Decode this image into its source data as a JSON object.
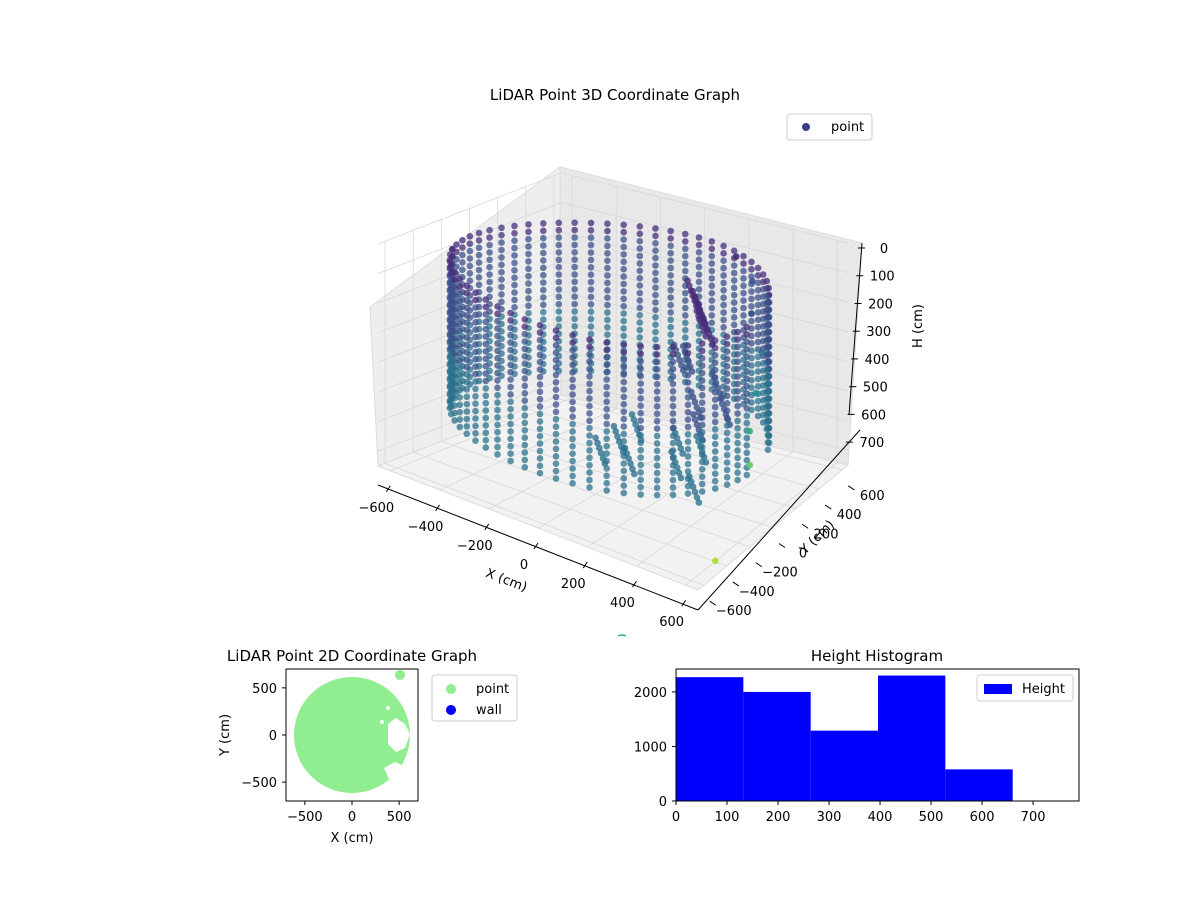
{
  "chart_data": [
    {
      "type": "scatter3d",
      "title": "LiDAR Point 3D Coordinate Graph",
      "xlabel": "X (cm)",
      "ylabel": "Y (cm)",
      "zlabel": "H (cm)",
      "xticks": [
        -600,
        -400,
        -200,
        0,
        200,
        400,
        600
      ],
      "yticks": [
        -600,
        -400,
        -200,
        0,
        200,
        400,
        600
      ],
      "zticks": [
        0,
        100,
        200,
        300,
        400,
        500,
        600,
        700
      ],
      "xlim": [
        -650,
        650
      ],
      "ylim": [
        -650,
        650
      ],
      "zlim": [
        0,
        750
      ],
      "z_inverted": true,
      "colormap": "viridis",
      "legend": [
        "point"
      ],
      "legend_position": "top-right",
      "grid": true,
      "wall_radius_cm": 600,
      "wall_height_range_cm": [
        100,
        600
      ],
      "series": [
        {
          "name": "point",
          "description_values": [
            {
              "x": 200,
              "y": 550,
              "h": 100
            },
            {
              "x": 300,
              "y": 500,
              "h": 150
            },
            {
              "x": 350,
              "y": 400,
              "h": 220
            },
            {
              "x": 450,
              "y": 300,
              "h": 300
            },
            {
              "x": 500,
              "y": 150,
              "h": 380
            },
            {
              "x": 550,
              "y": 0,
              "h": 450
            },
            {
              "x": 600,
              "y": -100,
              "h": 520
            },
            {
              "x": 650,
              "y": -500,
              "h": 700
            }
          ]
        }
      ]
    },
    {
      "type": "scatter",
      "title": "LiDAR Point 2D Coordinate Graph",
      "xlabel": "X (cm)",
      "ylabel": "Y (cm)",
      "xticks": [
        -500,
        0,
        500
      ],
      "yticks": [
        -500,
        0,
        500
      ],
      "xlim": [
        -700,
        700
      ],
      "ylim": [
        -700,
        700
      ],
      "legend": [
        "point",
        "wall"
      ],
      "legend_position": "outside-right",
      "colors": {
        "point": "#90ee90",
        "wall": "#0000ff"
      },
      "point_disc_radius_cm": 600
    },
    {
      "type": "bar",
      "title": "Height Histogram",
      "xlabel": "",
      "ylabel": "",
      "legend": [
        "Height"
      ],
      "legend_position": "top-right",
      "color": "#0000ff",
      "bins": [
        {
          "from": 0,
          "to": 132,
          "count": 2270
        },
        {
          "from": 132,
          "to": 264,
          "count": 2000
        },
        {
          "from": 264,
          "to": 396,
          "count": 1290
        },
        {
          "from": 396,
          "to": 528,
          "count": 2300
        },
        {
          "from": 528,
          "to": 660,
          "count": 580
        }
      ],
      "xticks": [
        0,
        100,
        200,
        300,
        400,
        500,
        600,
        700
      ],
      "yticks": [
        0,
        1000,
        2000
      ],
      "xlim": [
        0,
        790
      ],
      "ylim": [
        0,
        2420
      ]
    }
  ]
}
